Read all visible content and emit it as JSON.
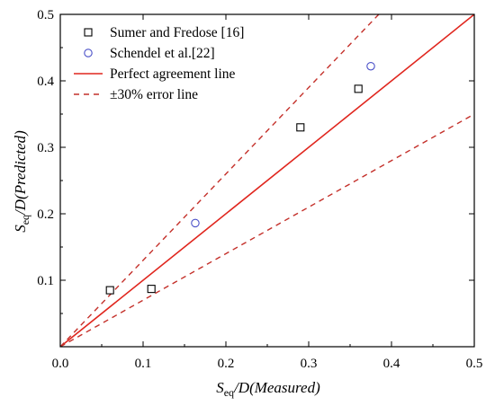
{
  "chart_data": {
    "type": "scatter",
    "title": "",
    "xlabel": {
      "main": "S",
      "sub": "eq",
      "rest": "/D(Measured)"
    },
    "ylabel": {
      "main": "S",
      "sub": "eq",
      "rest": "/D(Predicted)"
    },
    "xlim": [
      0.0,
      0.5
    ],
    "ylim": [
      0.0,
      0.5
    ],
    "x_ticks": [
      0.0,
      0.1,
      0.2,
      0.3,
      0.4,
      0.5
    ],
    "y_ticks": [
      0.1,
      0.2,
      0.3,
      0.4,
      0.5
    ],
    "x_tick_labels": [
      "0.0",
      "0.1",
      "0.2",
      "0.3",
      "0.4",
      "0.5"
    ],
    "y_tick_labels": [
      "0.1",
      "0.2",
      "0.3",
      "0.4",
      "0.5"
    ],
    "grid": false,
    "legend_position": "top-left",
    "series": [
      {
        "name": "Sumer and Fredose [16]",
        "marker": "square",
        "color": "#000000",
        "x": [
          0.06,
          0.11,
          0.29,
          0.36
        ],
        "y": [
          0.085,
          0.087,
          0.33,
          0.388
        ]
      },
      {
        "name": "Schendel et al.[22]",
        "marker": "circle",
        "color": "#4a50c8",
        "x": [
          0.163,
          0.375
        ],
        "y": [
          0.186,
          0.422
        ]
      }
    ],
    "lines": [
      {
        "name": "Perfect agreement line",
        "style": "solid",
        "color": "#e0261e",
        "slope": 1.0
      },
      {
        "name": "±30% error line",
        "style": "dashed",
        "color": "#c4302a",
        "slopes": [
          1.3,
          0.7
        ]
      }
    ]
  }
}
